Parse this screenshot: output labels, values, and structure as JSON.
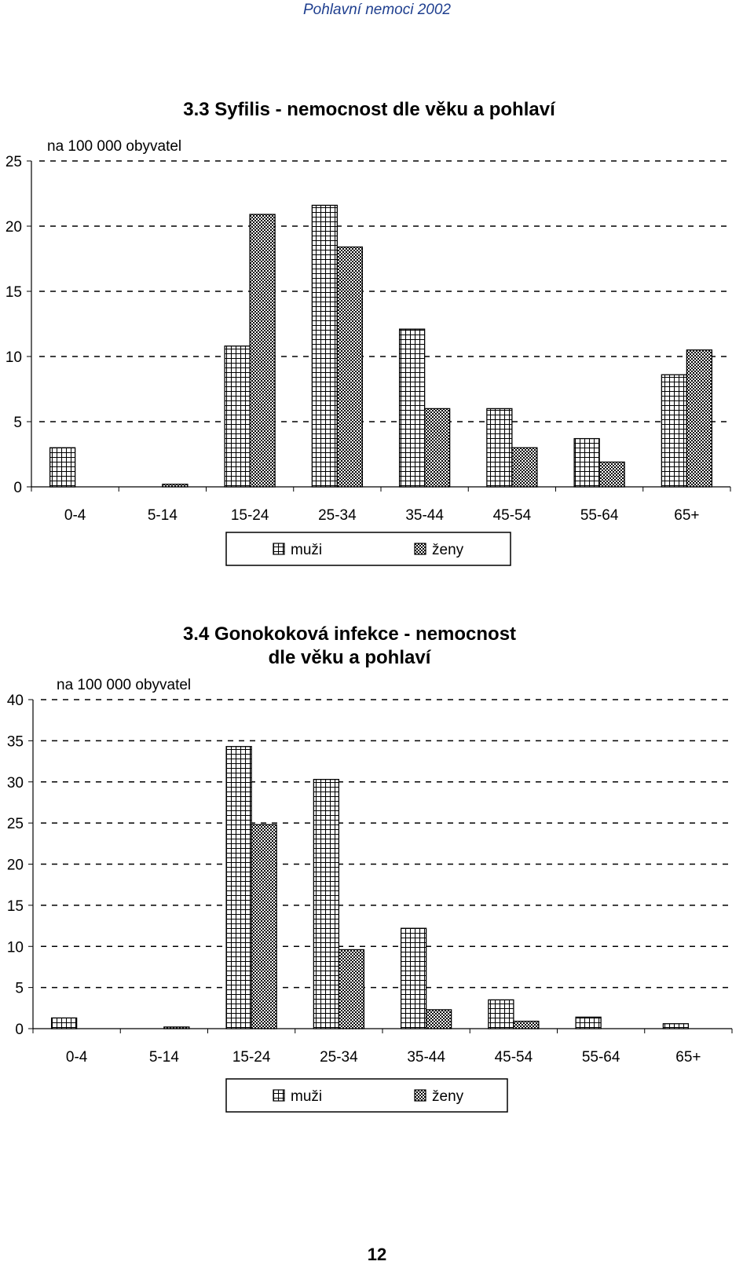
{
  "page": {
    "header": "Pohlavní nemoci 2002",
    "page_number": "12"
  },
  "chart_data": [
    {
      "type": "bar",
      "title": "3.3  Syfilis - nemocnost dle věku a pohlaví",
      "unit_label": "na 100 000 obyvatel",
      "categories": [
        "0-4",
        "5-14",
        "15-24",
        "25-34",
        "35-44",
        "45-54",
        "55-64",
        "65+"
      ],
      "yticks": [
        "0",
        "5",
        "10",
        "15",
        "20",
        "25"
      ],
      "ylim": [
        0,
        25
      ],
      "grid": "dashed horizontal",
      "legend_position": "bottom",
      "series": [
        {
          "name": "muži",
          "pattern": "grid",
          "values": [
            3.0,
            0,
            10.8,
            21.6,
            12.1,
            6.0,
            3.7,
            8.6
          ]
        },
        {
          "name": "ženy",
          "pattern": "checker",
          "values": [
            0,
            0.2,
            20.9,
            18.4,
            6.0,
            3.0,
            1.9,
            10.5
          ]
        }
      ]
    },
    {
      "type": "bar",
      "title": [
        "3.4  Gonokoková infekce - nemocnost",
        "dle věku a pohlaví"
      ],
      "unit_label": "na 100 000 obyvatel",
      "categories": [
        "0-4",
        "5-14",
        "15-24",
        "25-34",
        "35-44",
        "45-54",
        "55-64",
        "65+"
      ],
      "yticks": [
        "0",
        "5",
        "10",
        "15",
        "20",
        "25",
        "30",
        "35",
        "40"
      ],
      "ylim": [
        0,
        40
      ],
      "grid": "dashed horizontal",
      "legend_position": "bottom",
      "series": [
        {
          "name": "muži",
          "pattern": "grid",
          "values": [
            1.3,
            0,
            34.3,
            30.3,
            12.2,
            3.5,
            1.4,
            0.6
          ]
        },
        {
          "name": "ženy",
          "pattern": "checker",
          "values": [
            0,
            0.2,
            24.8,
            9.6,
            2.3,
            0.9,
            0,
            0
          ]
        }
      ]
    }
  ]
}
